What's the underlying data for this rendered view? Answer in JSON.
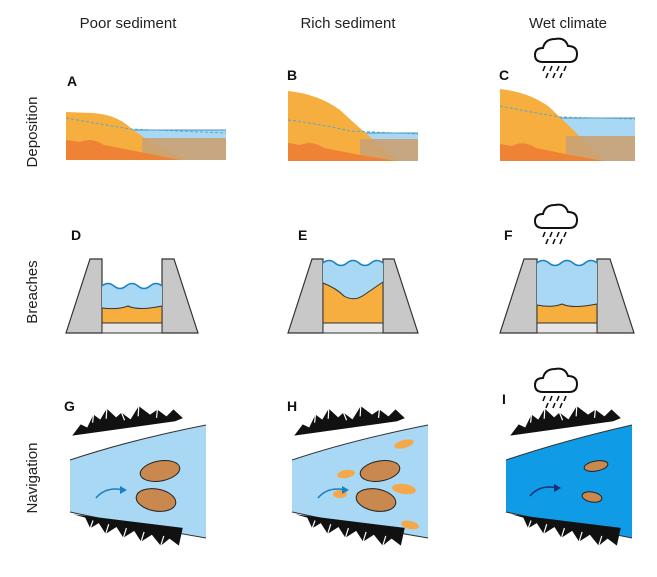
{
  "columns": [
    "Poor sediment",
    "Rich sediment",
    "Wet climate"
  ],
  "rows": [
    "Deposition",
    "Breaches",
    "Navigation"
  ],
  "panels": [
    "A",
    "B",
    "C",
    "D",
    "E",
    "F",
    "G",
    "H",
    "I"
  ],
  "icons": {
    "weather": "rain-cloud-icon",
    "flow": "flow-arrow-icon",
    "mountains": "mountain-icon"
  },
  "colors": {
    "sediment_light": "#F6AE3F",
    "sediment_dark": "#EE8235",
    "water_light": "#A8D8F4",
    "water_deep": "#0F9BE5",
    "overlap": "#C9A274",
    "dam": "#C8C8C8",
    "island": "#C9894E",
    "bar": "#F5A84A"
  }
}
